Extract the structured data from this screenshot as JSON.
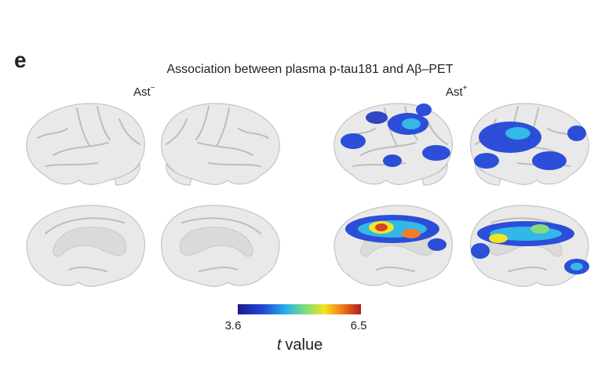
{
  "panel_letter": "e",
  "title": "Association between plasma p-tau181 and Aβ–PET",
  "group_labels": [
    {
      "name": "Ast",
      "sign": "−"
    },
    {
      "name": "Ast",
      "sign": "+"
    }
  ],
  "colorbar": {
    "min": 3.6,
    "max": 6.5,
    "label": {
      "variable": "t",
      "text": "value"
    }
  }
}
